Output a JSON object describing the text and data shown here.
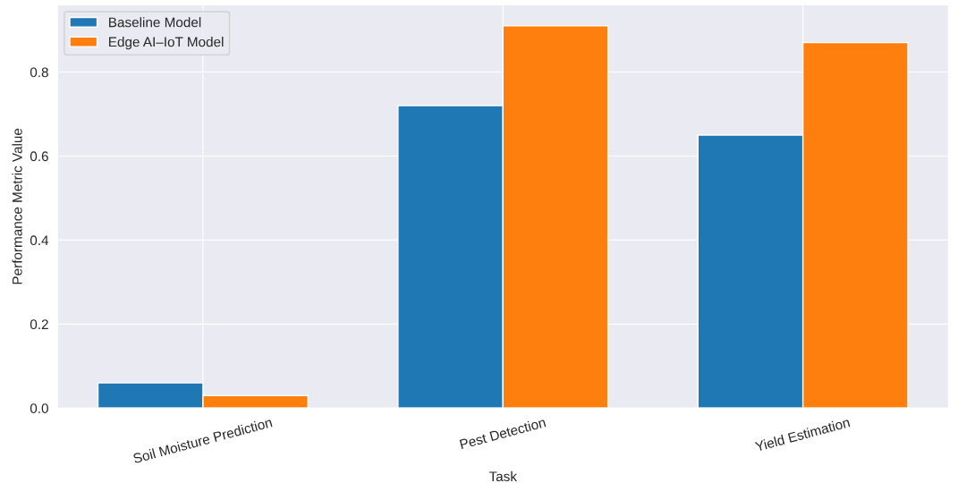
{
  "chart_data": {
    "type": "bar",
    "xlabel": "Task",
    "ylabel": "Performance Metric Value",
    "categories": [
      "Soil Moisture Prediction",
      "Pest Detection",
      "Yield Estimation"
    ],
    "series": [
      {
        "name": "Baseline Model",
        "color": "#1f77b4",
        "values": [
          0.06,
          0.72,
          0.65
        ]
      },
      {
        "name": "Edge AI–IoT Model",
        "color": "#ff7f0e",
        "values": [
          0.03,
          0.91,
          0.87
        ]
      }
    ],
    "ylim": [
      0,
      0.96
    ],
    "yticks": [
      {
        "value": 0,
        "label": "0.0"
      },
      0.2,
      0.4,
      0.6,
      0.8
    ],
    "grid": true,
    "legend": "top left"
  }
}
